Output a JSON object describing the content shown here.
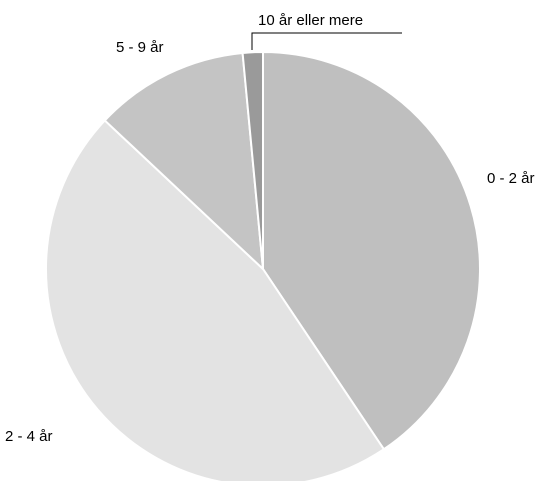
{
  "chart_data": {
    "type": "pie",
    "title": "",
    "slices": [
      {
        "label": "0 - 2 år",
        "value": 40.6,
        "color": "#bfbfbf"
      },
      {
        "label": "2 - 4 år",
        "value": 46.4,
        "color": "#e3e3e3"
      },
      {
        "label": "5 - 9 år",
        "value": 11.5,
        "color": "#c4c4c4"
      },
      {
        "label": "10 år eller mere",
        "value": 1.5,
        "color": "#9a9a9a"
      }
    ],
    "start_angle": "12 o'clock",
    "direction": "clockwise",
    "legend": "none"
  }
}
